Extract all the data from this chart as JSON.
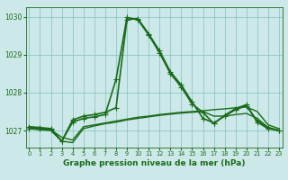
{
  "title": "Graphe pression niveau de la mer (hPa)",
  "background_color": "#cce8e8",
  "grid_color": "#80c0c0",
  "line_color": "#1a6b1a",
  "x_ticks": [
    0,
    1,
    2,
    3,
    4,
    5,
    6,
    7,
    8,
    9,
    10,
    11,
    12,
    13,
    14,
    15,
    16,
    17,
    18,
    19,
    20,
    21,
    22,
    23
  ],
  "y_ticks": [
    1027,
    1028,
    1029,
    1030
  ],
  "ylim": [
    1026.55,
    1030.25
  ],
  "xlim": [
    -0.3,
    23.3
  ],
  "series": [
    {
      "x": [
        0,
        1,
        2,
        3,
        4,
        5,
        6,
        7,
        8,
        9,
        10,
        11,
        12,
        13,
        14,
        15,
        16,
        17,
        18,
        19,
        20,
        21,
        22,
        23
      ],
      "y": [
        1027.1,
        1027.05,
        1027.02,
        1026.82,
        1026.75,
        1027.1,
        1027.15,
        1027.2,
        1027.25,
        1027.3,
        1027.35,
        1027.38,
        1027.42,
        1027.45,
        1027.48,
        1027.5,
        1027.52,
        1027.55,
        1027.57,
        1027.6,
        1027.62,
        1027.5,
        1027.15,
        1027.05
      ],
      "marker": null,
      "linewidth": 1.0
    },
    {
      "x": [
        0,
        1,
        2,
        3,
        4,
        5,
        6,
        7,
        8,
        9,
        10,
        11,
        12,
        13,
        14,
        15,
        16,
        17,
        18,
        19,
        20,
        21,
        22,
        23
      ],
      "y": [
        1027.05,
        1027.02,
        1027.0,
        1026.72,
        1026.68,
        1027.05,
        1027.12,
        1027.18,
        1027.22,
        1027.28,
        1027.32,
        1027.36,
        1027.4,
        1027.43,
        1027.46,
        1027.48,
        1027.5,
        1027.38,
        1027.38,
        1027.42,
        1027.45,
        1027.32,
        1027.08,
        1027.0
      ],
      "marker": null,
      "linewidth": 1.0
    },
    {
      "x": [
        0,
        1,
        2,
        3,
        4,
        5,
        6,
        7,
        8,
        9,
        10,
        11,
        12,
        13,
        14,
        15,
        16,
        17,
        18,
        19,
        20,
        21,
        22,
        23
      ],
      "y": [
        1027.1,
        1027.08,
        1027.05,
        1026.72,
        1027.28,
        1027.38,
        1027.42,
        1027.48,
        1027.6,
        1029.92,
        1029.95,
        1029.55,
        1029.1,
        1028.55,
        1028.2,
        1027.75,
        1027.32,
        1027.2,
        1027.38,
        1027.55,
        1027.65,
        1027.25,
        1027.08,
        1027.0
      ],
      "marker": "+",
      "markersize": 4,
      "linewidth": 1.2
    },
    {
      "x": [
        0,
        1,
        2,
        3,
        4,
        5,
        6,
        7,
        8,
        9,
        10,
        11,
        12,
        13,
        14,
        15,
        16,
        17,
        18,
        19,
        20,
        21,
        22,
        23
      ],
      "y": [
        1027.05,
        1027.05,
        1027.02,
        1026.72,
        1027.22,
        1027.32,
        1027.36,
        1027.42,
        1028.35,
        1029.98,
        1029.92,
        1029.52,
        1029.05,
        1028.5,
        1028.15,
        1027.7,
        1027.48,
        1027.18,
        1027.4,
        1027.58,
        1027.68,
        1027.22,
        1027.05,
        1027.0
      ],
      "marker": "+",
      "markersize": 4,
      "linewidth": 1.2
    }
  ]
}
